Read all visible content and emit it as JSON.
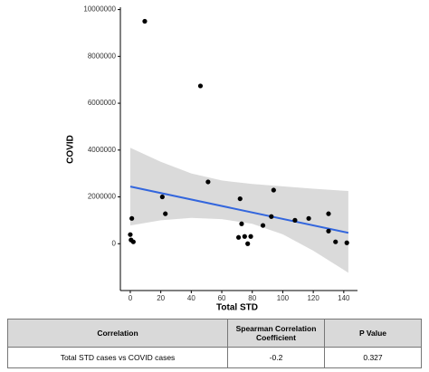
{
  "chart_data": {
    "type": "scatter",
    "x_label": "Total STD",
    "y_label": "COVID",
    "xlim": [
      -6.5,
      149
    ],
    "ylim": [
      -2000000,
      10100000
    ],
    "xticks": [
      0,
      20,
      40,
      60,
      80,
      100,
      120,
      140
    ],
    "yticks": [
      0,
      2000000,
      4000000,
      6000000,
      8000000,
      10000000
    ],
    "points": {
      "color": "#000000",
      "x": [
        9.5,
        46,
        51,
        0,
        0.5,
        2,
        1,
        21,
        23,
        72,
        71,
        73,
        75,
        77,
        79,
        87,
        92.5,
        94,
        108,
        117,
        130,
        130,
        134.6,
        142
      ],
      "y": [
        9500000,
        6740000,
        2640000,
        390000,
        160000,
        80000,
        1080000,
        2000000,
        1280000,
        1920000,
        270000,
        850000,
        310000,
        0,
        310000,
        780000,
        1160000,
        2290000,
        1000000,
        1080000,
        1280000,
        540000,
        80000,
        40000
      ]
    },
    "fit": {
      "color": "#3366dd",
      "x": [
        0,
        143
      ],
      "values": [
        2440000,
        465000
      ]
    },
    "band": {
      "color": "#d3d3d3",
      "x": [
        0,
        20,
        40,
        60,
        80,
        100,
        120,
        143
      ],
      "upper": [
        4100000,
        3500000,
        3000000,
        2700000,
        2550000,
        2450000,
        2350000,
        2250000
      ],
      "lower": [
        780000,
        1000000,
        1100000,
        1050000,
        850000,
        400000,
        -300000,
        -1240000
      ]
    }
  },
  "table": {
    "header": [
      "Correlation",
      "Spearman Correlation Coefficient",
      "P Value"
    ],
    "rows": [
      [
        "Total STD cases vs COVID cases",
        "-0.2",
        "0.327"
      ]
    ]
  }
}
